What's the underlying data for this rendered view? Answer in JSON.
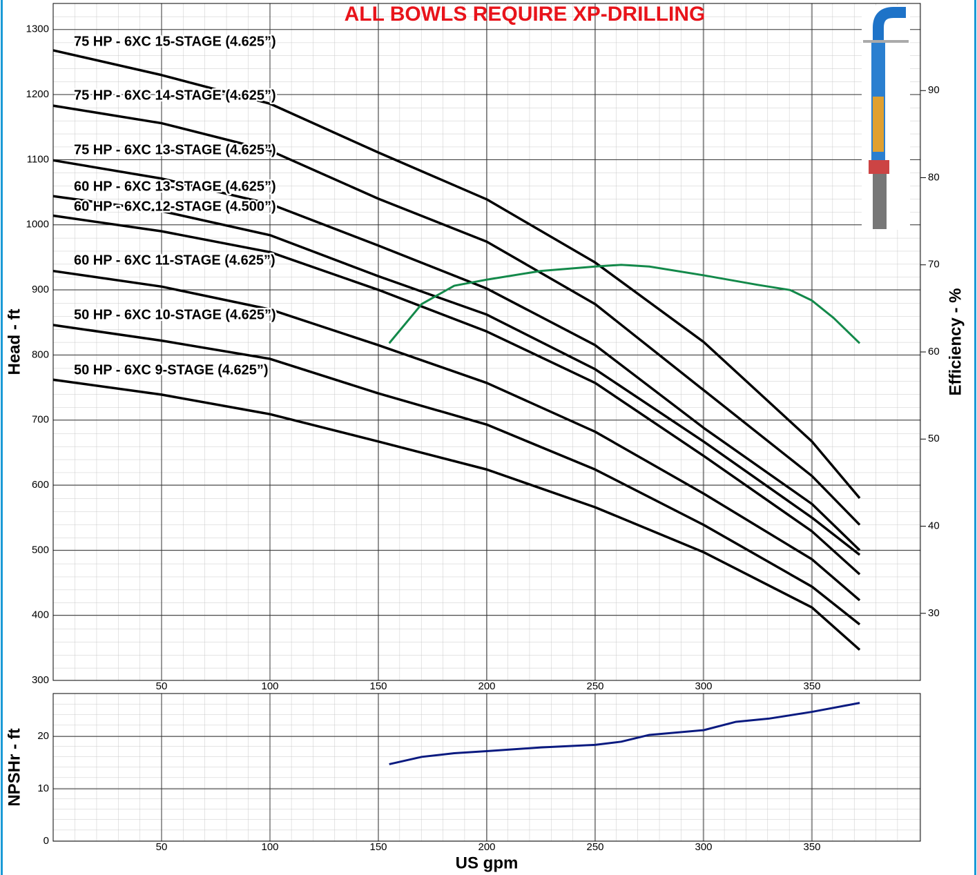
{
  "chart_data": [
    {
      "type": "line",
      "title": "ALL BOWLS REQUIRE XP-DRILLING",
      "ylabel": "Head - ft",
      "y2label": "Efficiency - %",
      "xlim": [
        0,
        400
      ],
      "xticks": [
        50,
        100,
        150,
        200,
        250,
        300,
        350
      ],
      "ylim": [
        300,
        1340
      ],
      "yticks": [
        300,
        400,
        500,
        600,
        700,
        800,
        900,
        1000,
        1100,
        1200,
        1300
      ],
      "y2lim": [
        22.3,
        100
      ],
      "y2ticks": [
        30,
        40,
        50,
        60,
        70,
        80,
        90
      ],
      "grid": true,
      "x": [
        0,
        50,
        100,
        150,
        200,
        250,
        300,
        350,
        372
      ],
      "series": [
        {
          "name": "75 HP - 6XC 15-STAGE (4.625”)",
          "color": "#000000",
          "values": [
            1268,
            1230,
            1186,
            1111,
            1039,
            942,
            820,
            667,
            580
          ]
        },
        {
          "name": "75 HP - 6XC 14-STAGE (4.625”)",
          "color": "#000000",
          "values": [
            1183,
            1156,
            1114,
            1040,
            974,
            878,
            746,
            614,
            539
          ]
        },
        {
          "name": "75 HP - 6XC 13-STAGE (4.625”)",
          "color": "#000000",
          "values": [
            1099,
            1071,
            1032,
            968,
            902,
            815,
            688,
            571,
            500
          ]
        },
        {
          "name": "60 HP - 6XC 13-STAGE (4.625”)",
          "color": "#000000",
          "values": [
            1044,
            1021,
            984,
            921,
            862,
            778,
            667,
            550,
            493
          ]
        },
        {
          "name": "60 HP - 6XC 12-STAGE (4.500”)",
          "color": "#000000",
          "values": [
            1014,
            990,
            958,
            900,
            836,
            757,
            645,
            529,
            463
          ]
        },
        {
          "name": "60 HP - 6XC 11-STAGE (4.625”)",
          "color": "#000000",
          "values": [
            929,
            905,
            870,
            815,
            757,
            682,
            587,
            486,
            423
          ]
        },
        {
          "name": "50 HP - 6XC 10-STAGE (4.625”)",
          "color": "#000000",
          "values": [
            846,
            822,
            794,
            741,
            693,
            624,
            539,
            444,
            386
          ]
        },
        {
          "name": "50 HP - 6XC 9-STAGE (4.625”)",
          "color": "#000000",
          "values": [
            762,
            739,
            709,
            667,
            624,
            566,
            497,
            412,
            347
          ]
        },
        {
          "color": "#13894a",
          "axis": "y2",
          "x": [
            155,
            170,
            185,
            200,
            225,
            250,
            262,
            275,
            300,
            325,
            340,
            350,
            360,
            372
          ],
          "values": [
            61.0,
            65.5,
            67.6,
            68.3,
            69.3,
            69.8,
            70.0,
            69.8,
            68.8,
            67.7,
            67.1,
            65.9,
            63.9,
            61.0
          ]
        }
      ]
    },
    {
      "type": "line",
      "ylabel": "NPSHr - ft",
      "xlabel": "US gpm",
      "xlim": [
        0,
        400
      ],
      "xticks": [
        50,
        100,
        150,
        200,
        250,
        300,
        350
      ],
      "ylim": [
        0,
        28.2
      ],
      "yticks": [
        0,
        10,
        20
      ],
      "grid": true,
      "x": [
        155,
        170,
        185,
        200,
        225,
        250,
        262,
        275,
        300,
        315,
        330,
        350,
        372
      ],
      "series": [
        {
          "color": "#0a1a80",
          "values": [
            14.7,
            16.1,
            16.8,
            17.2,
            17.9,
            18.4,
            19.0,
            20.3,
            21.2,
            22.8,
            23.4,
            24.7,
            26.4
          ]
        }
      ]
    }
  ]
}
